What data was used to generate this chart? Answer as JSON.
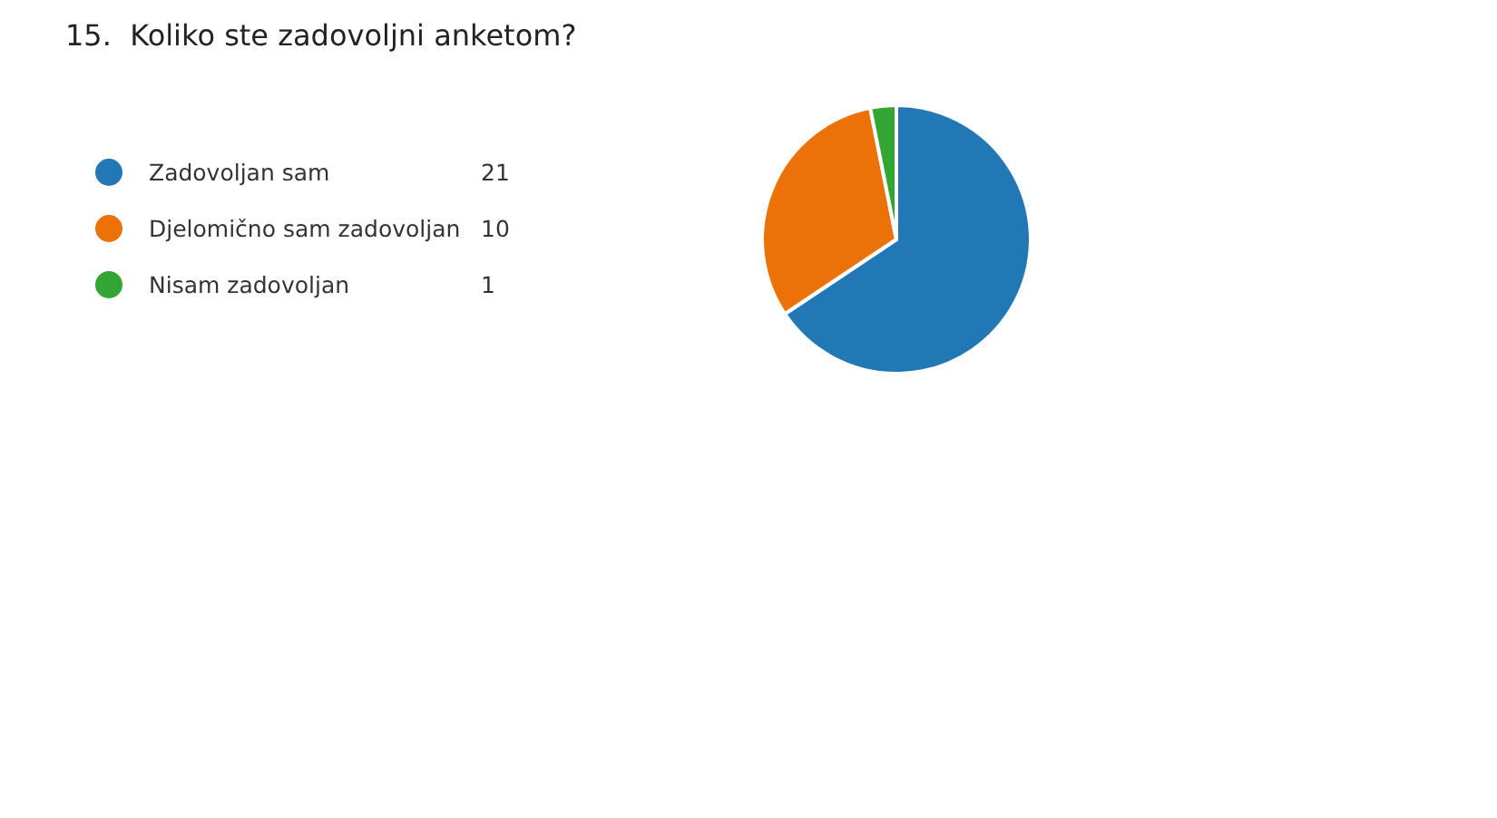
{
  "chart_data": {
    "type": "pie",
    "title": "15.  Koliko ste zadovoljni anketom?",
    "categories": [
      "Zadovoljan sam",
      "Djelomično sam zadovoljan",
      "Nisam zadovoljan"
    ],
    "values": [
      21,
      10,
      1
    ],
    "colors": [
      "#2178b5",
      "#ed7109",
      "#33a532"
    ],
    "legend": "left",
    "data_labels": true
  }
}
